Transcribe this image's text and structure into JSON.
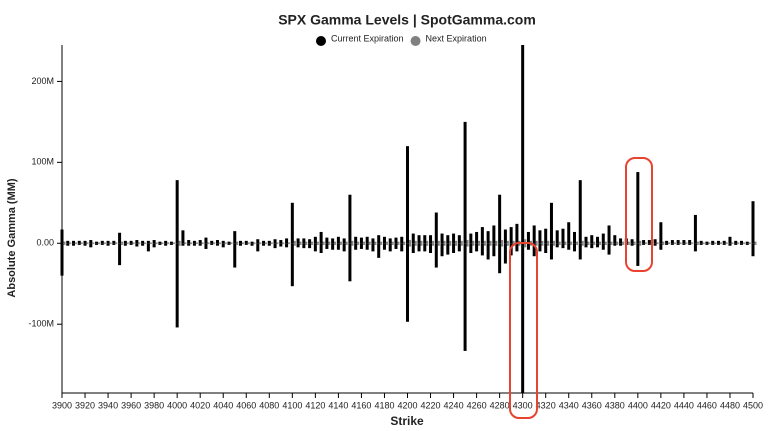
{
  "chart_data": {
    "type": "bar",
    "title": "SPX Gamma Levels | SpotGamma.com",
    "x_label": "Strike",
    "y_label": "Absolute Gamma (MM)",
    "x": [
      3900,
      3905,
      3910,
      3915,
      3920,
      3925,
      3930,
      3935,
      3940,
      3945,
      3950,
      3955,
      3960,
      3965,
      3970,
      3975,
      3980,
      3985,
      3990,
      3995,
      4000,
      4005,
      4010,
      4015,
      4020,
      4025,
      4030,
      4035,
      4040,
      4045,
      4050,
      4055,
      4060,
      4065,
      4070,
      4075,
      4080,
      4085,
      4090,
      4095,
      4100,
      4105,
      4110,
      4115,
      4120,
      4125,
      4130,
      4135,
      4140,
      4145,
      4150,
      4155,
      4160,
      4165,
      4170,
      4175,
      4180,
      4185,
      4190,
      4195,
      4200,
      4205,
      4210,
      4215,
      4220,
      4225,
      4230,
      4235,
      4240,
      4245,
      4250,
      4255,
      4260,
      4265,
      4270,
      4275,
      4280,
      4285,
      4290,
      4295,
      4300,
      4305,
      4310,
      4315,
      4320,
      4325,
      4330,
      4335,
      4340,
      4345,
      4350,
      4355,
      4360,
      4365,
      4370,
      4375,
      4380,
      4385,
      4390,
      4395,
      4400,
      4405,
      4410,
      4415,
      4420,
      4425,
      4430,
      4435,
      4440,
      4445,
      4450,
      4455,
      4460,
      4465,
      4470,
      4475,
      4480,
      4485,
      4490,
      4495,
      4500
    ],
    "series": [
      {
        "name": "Current Expiration",
        "color": "#000000",
        "values": [
          [
            17,
            -40
          ],
          [
            3,
            -3
          ],
          [
            3,
            -3
          ],
          [
            3,
            -2
          ],
          [
            3,
            -3
          ],
          [
            4,
            -5
          ],
          [
            2,
            -2
          ],
          [
            3,
            -2
          ],
          [
            3,
            -3
          ],
          [
            3,
            -2
          ],
          [
            13,
            -27
          ],
          [
            3,
            -3
          ],
          [
            3,
            -2
          ],
          [
            4,
            -4
          ],
          [
            3,
            -3
          ],
          [
            3,
            -10
          ],
          [
            4,
            -5
          ],
          [
            2,
            -2
          ],
          [
            3,
            -3
          ],
          [
            2,
            -2
          ],
          [
            78,
            -104
          ],
          [
            16,
            -3
          ],
          [
            4,
            -3
          ],
          [
            3,
            -3
          ],
          [
            4,
            -3
          ],
          [
            7,
            -7
          ],
          [
            3,
            -2
          ],
          [
            4,
            -3
          ],
          [
            3,
            -5
          ],
          [
            2,
            -2
          ],
          [
            15,
            -30
          ],
          [
            3,
            -3
          ],
          [
            3,
            -2
          ],
          [
            2,
            -3
          ],
          [
            5,
            -10
          ],
          [
            3,
            -3
          ],
          [
            3,
            -3
          ],
          [
            5,
            -6
          ],
          [
            4,
            -4
          ],
          [
            6,
            -5
          ],
          [
            50,
            -53
          ],
          [
            6,
            -5
          ],
          [
            6,
            -6
          ],
          [
            5,
            -6
          ],
          [
            8,
            -10
          ],
          [
            14,
            -12
          ],
          [
            7,
            -7
          ],
          [
            6,
            -8
          ],
          [
            8,
            -8
          ],
          [
            6,
            -10
          ],
          [
            60,
            -47
          ],
          [
            8,
            -8
          ],
          [
            7,
            -7
          ],
          [
            8,
            -8
          ],
          [
            6,
            -10
          ],
          [
            10,
            -18
          ],
          [
            8,
            -8
          ],
          [
            6,
            -10
          ],
          [
            7,
            -7
          ],
          [
            8,
            -10
          ],
          [
            120,
            -97
          ],
          [
            12,
            -12
          ],
          [
            10,
            -10
          ],
          [
            10,
            -10
          ],
          [
            10,
            -12
          ],
          [
            38,
            -30
          ],
          [
            12,
            -16
          ],
          [
            10,
            -14
          ],
          [
            12,
            -12
          ],
          [
            10,
            -10
          ],
          [
            150,
            -133
          ],
          [
            12,
            -12
          ],
          [
            14,
            -10
          ],
          [
            20,
            -15
          ],
          [
            15,
            -20
          ],
          [
            22,
            -16
          ],
          [
            60,
            -37
          ],
          [
            17,
            -25
          ],
          [
            20,
            -15
          ],
          [
            24,
            -10
          ],
          [
            245,
            -185
          ],
          [
            14,
            -8
          ],
          [
            22,
            -16
          ],
          [
            16,
            -10
          ],
          [
            18,
            -12
          ],
          [
            50,
            -20
          ],
          [
            16,
            -5
          ],
          [
            18,
            -6
          ],
          [
            26,
            -8
          ],
          [
            14,
            -10
          ],
          [
            78,
            -20
          ],
          [
            8,
            -5
          ],
          [
            10,
            -6
          ],
          [
            8,
            -5
          ],
          [
            12,
            -8
          ],
          [
            22,
            -14
          ],
          [
            10,
            -3
          ],
          [
            6,
            -3
          ],
          [
            6,
            -2
          ],
          [
            5,
            -3
          ],
          [
            88,
            -28
          ],
          [
            4,
            -2
          ],
          [
            4,
            -2
          ],
          [
            5,
            -3
          ],
          [
            26,
            -8
          ],
          [
            3,
            -2
          ],
          [
            4,
            -2
          ],
          [
            4,
            -2
          ],
          [
            4,
            -2
          ],
          [
            4,
            -2
          ],
          [
            35,
            -10
          ],
          [
            3,
            -2
          ],
          [
            2,
            -2
          ],
          [
            3,
            -2
          ],
          [
            3,
            -2
          ],
          [
            3,
            -2
          ],
          [
            8,
            -3
          ],
          [
            3,
            -2
          ],
          [
            3,
            -2
          ],
          [
            2,
            -2
          ],
          [
            52,
            -16
          ]
        ]
      },
      {
        "name": "Next Expiration",
        "color": "#808080",
        "values": [
          [
            2,
            -2
          ],
          [
            1,
            -1
          ],
          [
            1,
            -1
          ],
          [
            1,
            -1
          ],
          [
            1,
            -1
          ],
          [
            1,
            -1
          ],
          [
            1,
            -1
          ],
          [
            1,
            -1
          ],
          [
            1,
            -1
          ],
          [
            1,
            -1
          ],
          [
            2,
            -2
          ],
          [
            1,
            -1
          ],
          [
            1,
            -1
          ],
          [
            1,
            -1
          ],
          [
            1,
            -1
          ],
          [
            1,
            -1
          ],
          [
            1,
            -1
          ],
          [
            1,
            -1
          ],
          [
            1,
            -1
          ],
          [
            1,
            -1
          ],
          [
            3,
            -3
          ],
          [
            1,
            -1
          ],
          [
            1,
            -1
          ],
          [
            1,
            -1
          ],
          [
            1,
            -1
          ],
          [
            1,
            -1
          ],
          [
            1,
            -1
          ],
          [
            1,
            -1
          ],
          [
            1,
            -1
          ],
          [
            1,
            -1
          ],
          [
            2,
            -2
          ],
          [
            1,
            -1
          ],
          [
            1,
            -1
          ],
          [
            1,
            -1
          ],
          [
            1,
            -1
          ],
          [
            1,
            -1
          ],
          [
            1,
            -1
          ],
          [
            1,
            -1
          ],
          [
            1,
            -1
          ],
          [
            1,
            -1
          ],
          [
            3,
            -3
          ],
          [
            2,
            -2
          ],
          [
            2,
            -2
          ],
          [
            2,
            -2
          ],
          [
            2,
            -2
          ],
          [
            2,
            -2
          ],
          [
            2,
            -2
          ],
          [
            2,
            -2
          ],
          [
            2,
            -2
          ],
          [
            2,
            -2
          ],
          [
            3,
            -3
          ],
          [
            2,
            -2
          ],
          [
            2,
            -2
          ],
          [
            2,
            -2
          ],
          [
            2,
            -2
          ],
          [
            2,
            -2
          ],
          [
            2,
            -2
          ],
          [
            2,
            -2
          ],
          [
            2,
            -2
          ],
          [
            2,
            -2
          ],
          [
            4,
            -4
          ],
          [
            3,
            -3
          ],
          [
            3,
            -3
          ],
          [
            3,
            -3
          ],
          [
            3,
            -3
          ],
          [
            3,
            -3
          ],
          [
            3,
            -3
          ],
          [
            3,
            -3
          ],
          [
            3,
            -3
          ],
          [
            3,
            -3
          ],
          [
            4,
            -4
          ],
          [
            3,
            -3
          ],
          [
            3,
            -3
          ],
          [
            3,
            -3
          ],
          [
            3,
            -3
          ],
          [
            3,
            -3
          ],
          [
            4,
            -4
          ],
          [
            3,
            -3
          ],
          [
            3,
            -3
          ],
          [
            3,
            -3
          ],
          [
            5,
            -5
          ],
          [
            3,
            -3
          ],
          [
            3,
            -3
          ],
          [
            3,
            -3
          ],
          [
            3,
            -3
          ],
          [
            3,
            -3
          ],
          [
            2,
            -2
          ],
          [
            2,
            -2
          ],
          [
            2,
            -2
          ],
          [
            2,
            -2
          ],
          [
            3,
            -3
          ],
          [
            2,
            -2
          ],
          [
            2,
            -2
          ],
          [
            2,
            -2
          ],
          [
            2,
            -2
          ],
          [
            2,
            -2
          ],
          [
            2,
            -2
          ],
          [
            2,
            -2
          ],
          [
            2,
            -2
          ],
          [
            2,
            -2
          ],
          [
            3,
            -3
          ],
          [
            1,
            -1
          ],
          [
            1,
            -1
          ],
          [
            1,
            -1
          ],
          [
            2,
            -2
          ],
          [
            1,
            -1
          ],
          [
            1,
            -1
          ],
          [
            1,
            -1
          ],
          [
            1,
            -1
          ],
          [
            1,
            -1
          ],
          [
            2,
            -2
          ],
          [
            1,
            -1
          ],
          [
            1,
            -1
          ],
          [
            1,
            -1
          ],
          [
            1,
            -1
          ],
          [
            1,
            -1
          ],
          [
            1,
            -1
          ],
          [
            1,
            -1
          ],
          [
            1,
            -1
          ],
          [
            1,
            -1
          ],
          [
            2,
            -2
          ]
        ]
      }
    ],
    "xlim": [
      3900,
      4500
    ],
    "xticks": [
      3900,
      3920,
      3940,
      3960,
      3980,
      4000,
      4020,
      4040,
      4060,
      4080,
      4100,
      4120,
      4140,
      4160,
      4180,
      4200,
      4220,
      4240,
      4260,
      4280,
      4300,
      4320,
      4340,
      4360,
      4380,
      4400,
      4420,
      4440,
      4460,
      4480,
      4500
    ],
    "ylim": [
      -185,
      245
    ],
    "yticks": [
      {
        "value": -100,
        "label": "-100M"
      },
      {
        "value": 0,
        "label": "0.00"
      },
      {
        "value": 100,
        "label": "100M"
      },
      {
        "value": 200,
        "label": "200M"
      }
    ]
  }
}
